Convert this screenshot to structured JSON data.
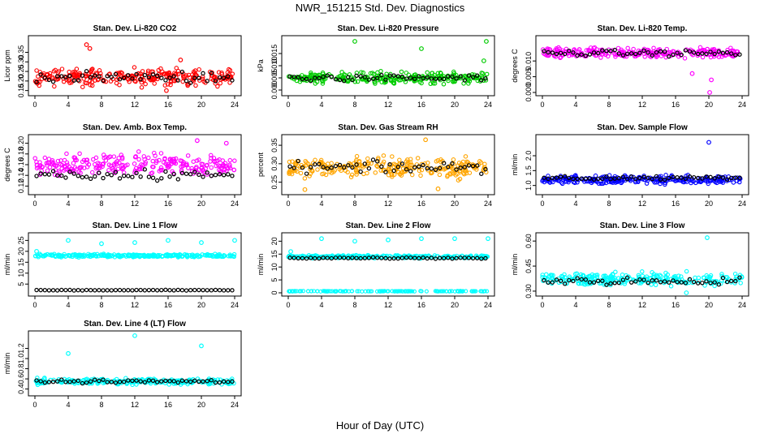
{
  "title": "NWR_151215  Std. Dev. Diagnostics",
  "xlabel": "Hour of Day (UTC)",
  "colors": {
    "co2": "#ff0000",
    "pressure": "#00cc00",
    "temp": "#ff00ff",
    "ambtemp": "#ff00ff",
    "rh": "#ffa500",
    "sample": "#0000ff",
    "line": "#00ffff",
    "highlight": "#000000"
  },
  "chart_data": [
    {
      "id": "co2",
      "type": "scatter",
      "title": "Stan. Dev. Li-820 CO2",
      "ylabel": "Licor ppm",
      "xticks": [
        0,
        4,
        8,
        12,
        16,
        20,
        24
      ],
      "xlim": [
        0,
        24
      ],
      "ylim": [
        0.14,
        0.42
      ],
      "yticks": [
        "0.15",
        "0.20",
        "0.25",
        "0.30",
        "0.35"
      ],
      "yvals": [
        0.15,
        0.2,
        0.25,
        0.3,
        0.35
      ],
      "color": "co2",
      "base": 0.22,
      "spread": 0.04,
      "highlight_base": 0.22,
      "outliers": [
        [
          6.2,
          0.39
        ],
        [
          6.6,
          0.37
        ],
        [
          17.5,
          0.31
        ],
        [
          15.8,
          0.15
        ]
      ]
    },
    {
      "id": "pressure",
      "type": "scatter",
      "title": "Stan. Dev. Li-820 Pressure",
      "ylabel": "kPa",
      "xticks": [
        0,
        4,
        8,
        12,
        16,
        20,
        24
      ],
      "xlim": [
        0,
        24
      ],
      "ylim": [
        -0.001,
        0.021
      ],
      "yticks": [
        "0.000",
        "0.005",
        "0.010",
        "0.015"
      ],
      "yvals": [
        0,
        0.005,
        0.01,
        0.015
      ],
      "color": "pressure",
      "base": 0.005,
      "spread": 0.002,
      "highlight_base": 0.005,
      "outliers": [
        [
          8,
          0.02
        ],
        [
          16,
          0.017
        ],
        [
          23.8,
          0.02
        ],
        [
          23.5,
          0.012
        ]
      ]
    },
    {
      "id": "temp",
      "type": "scatter",
      "title": "Stan. Dev. Li-820 Temp.",
      "ylabel": "degrees C",
      "xticks": [
        0,
        4,
        8,
        12,
        16,
        20,
        24
      ],
      "xlim": [
        0,
        24
      ],
      "ylim": [
        0.0,
        0.017
      ],
      "yticks": [
        "0.000",
        "0.005",
        "0.010"
      ],
      "yvals": [
        0,
        0.005,
        0.01
      ],
      "color": "temp",
      "base": 0.0125,
      "spread": 0.0015,
      "highlight_base": 0.0125,
      "outliers": [
        [
          20.1,
          0.0
        ],
        [
          20.3,
          0.004
        ],
        [
          18,
          0.006
        ]
      ]
    },
    {
      "id": "ambtemp",
      "type": "scatter",
      "title": "Stan. Dev. Amb. Box Temp.",
      "ylabel": "degrees C",
      "xticks": [
        0,
        4,
        8,
        12,
        16,
        20,
        24
      ],
      "xlim": [
        0,
        24
      ],
      "ylim": [
        0.11,
        0.21
      ],
      "yticks": [
        "0.12",
        "0.14",
        "0.16",
        "0.18",
        "0.20"
      ],
      "yvals": [
        0.12,
        0.14,
        0.16,
        0.18,
        0.2
      ],
      "color": "ambtemp",
      "base": 0.16,
      "spread": 0.018,
      "highlight_base": 0.14,
      "outliers": [
        [
          19.5,
          0.205
        ],
        [
          23,
          0.2
        ]
      ]
    },
    {
      "id": "rh",
      "type": "scatter",
      "title": "Stan. Dev. Gas Stream RH",
      "ylabel": "percent",
      "xticks": [
        0,
        4,
        8,
        12,
        16,
        20,
        24
      ],
      "xlim": [
        0,
        24
      ],
      "ylim": [
        0.225,
        0.37
      ],
      "yticks": [
        "0.25",
        "0.30",
        "0.35"
      ],
      "yvals": [
        0.25,
        0.3,
        0.35
      ],
      "color": "rh",
      "base": 0.29,
      "spread": 0.025,
      "highlight_base": 0.29,
      "outliers": [
        [
          16.5,
          0.365
        ],
        [
          2,
          0.23
        ],
        [
          18,
          0.232
        ]
      ]
    },
    {
      "id": "sample",
      "type": "scatter",
      "title": "Stan. Dev. Sample Flow",
      "ylabel": "ml/min",
      "xticks": [
        0,
        4,
        8,
        12,
        16,
        20,
        24
      ],
      "xlim": [
        0,
        24
      ],
      "ylim": [
        0.8,
        2.6
      ],
      "yticks": [
        "1.0",
        "1.5",
        "2.0"
      ],
      "yvals": [
        1.0,
        1.5,
        2.0
      ],
      "color": "sample",
      "base": 1.2,
      "spread": 0.12,
      "highlight_base": 1.25,
      "outliers": [
        [
          20,
          2.45
        ]
      ]
    },
    {
      "id": "line1",
      "type": "scatter",
      "title": "Stan. Dev. Line 1 Flow",
      "ylabel": "ml/min",
      "xticks": [
        0,
        4,
        8,
        12,
        16,
        20,
        24
      ],
      "xlim": [
        0,
        24
      ],
      "ylim": [
        1,
        27
      ],
      "yticks": [
        "5",
        "10",
        "15",
        "20",
        "25"
      ],
      "yvals": [
        5,
        10,
        15,
        20,
        25
      ],
      "color": "line",
      "base": 18,
      "spread": 0.6,
      "highlight_base": 2.2,
      "highlight_spread": 0.2,
      "outliers": [
        [
          4,
          25
        ],
        [
          8,
          23.5
        ],
        [
          12,
          24
        ],
        [
          16,
          25
        ],
        [
          20,
          24
        ],
        [
          24,
          25
        ],
        [
          0.2,
          20
        ]
      ]
    },
    {
      "id": "line2",
      "type": "scatter",
      "title": "Stan. Dev. Line 2 Flow",
      "ylabel": "ml/min",
      "xticks": [
        0,
        4,
        8,
        12,
        16,
        20,
        24
      ],
      "xlim": [
        0,
        24
      ],
      "ylim": [
        0,
        22
      ],
      "yticks": [
        "0",
        "5",
        "10",
        "15",
        "20"
      ],
      "yvals": [
        0,
        5,
        10,
        15,
        20
      ],
      "color": "line",
      "base": 14,
      "spread": 0.5,
      "highlight_base": 13.5,
      "second_base": 0.6,
      "outliers": [
        [
          4,
          21
        ],
        [
          8,
          20
        ],
        [
          12,
          20.5
        ],
        [
          16,
          21
        ],
        [
          20,
          21
        ],
        [
          24,
          21
        ],
        [
          0.3,
          16
        ]
      ]
    },
    {
      "id": "line3",
      "type": "scatter",
      "title": "Stan. Dev. Line 3 Flow",
      "ylabel": "ml/min",
      "xticks": [
        0,
        4,
        8,
        12,
        16,
        20,
        24
      ],
      "xlim": [
        0,
        24
      ],
      "ylim": [
        0.29,
        0.63
      ],
      "yticks": [
        "0.30",
        "0.45",
        "0.60"
      ],
      "yvals": [
        0.3,
        0.45,
        0.6
      ],
      "color": "line",
      "base": 0.37,
      "spread": 0.035,
      "highlight_base": 0.36,
      "outliers": [
        [
          19.8,
          0.62
        ],
        [
          17.3,
          0.29
        ]
      ]
    },
    {
      "id": "line4",
      "type": "scatter",
      "title": "Stan. Dev. Line 4 (LT) Flow",
      "ylabel": "ml/min",
      "xticks": [
        0,
        4,
        8,
        12,
        16,
        20,
        24
      ],
      "xlim": [
        0,
        24
      ],
      "ylim": [
        0.33,
        1.48
      ],
      "yticks": [
        "0.4",
        "0.6",
        "0.8",
        "1.0",
        "1.2"
      ],
      "yvals": [
        0.4,
        0.6,
        0.8,
        1.0,
        1.2
      ],
      "color": "line",
      "base": 0.55,
      "spread": 0.05,
      "highlight_base": 0.55,
      "outliers": [
        [
          4,
          1.1
        ],
        [
          12,
          1.45
        ],
        [
          20,
          1.25
        ]
      ]
    }
  ]
}
